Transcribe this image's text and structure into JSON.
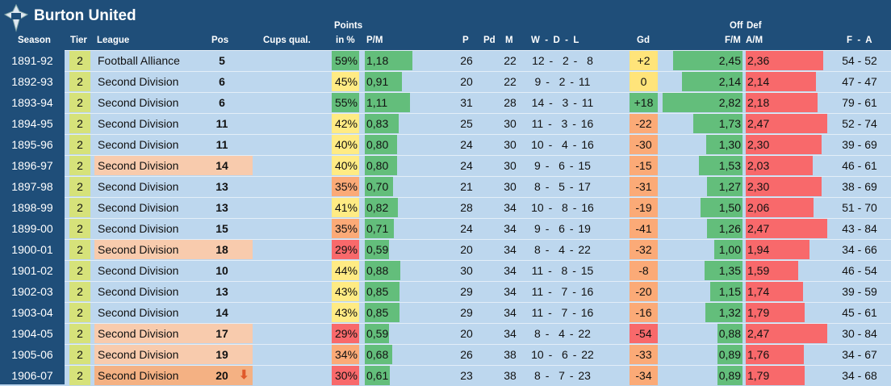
{
  "title": "Burton United",
  "headers": {
    "season": "Season",
    "tier": "Tier",
    "league": "League",
    "pos": "Pos",
    "cups": "Cups qual.",
    "points": "Points",
    "in_pct": "in %",
    "pm": "P/M",
    "p": "P",
    "pd": "Pd",
    "m": "M",
    "wdl": "W  -  D  -  L",
    "gd": "Gd",
    "off": "Off",
    "def": "Def",
    "fm": "F/M",
    "am": "A/M",
    "fa": "F  -  A"
  },
  "colors": {
    "header": "#1f4e79",
    "row": "#bdd7ee",
    "green": "#63be7b",
    "yellow": "#ffeb84",
    "orange": "#fbaa77",
    "red": "#f8696b",
    "league_warn": "#f8cbad",
    "league_releg": "#f4b183"
  },
  "rows": [
    {
      "season": "1891-92",
      "tier": "2",
      "league": "Football Alliance",
      "pos": "5",
      "pct": "59%",
      "pm": "1,18",
      "p": "26",
      "m": "22",
      "wdl": "12 -  2 -  8",
      "gd": "+2",
      "fm": "2,45",
      "am": "2,36",
      "fa": "54 - 52",
      "hl": ""
    },
    {
      "season": "1892-93",
      "tier": "2",
      "league": "Second Division",
      "pos": "6",
      "pct": "45%",
      "pm": "0,91",
      "p": "20",
      "m": "22",
      "wdl": "9 -  2 - 11",
      "gd": "0",
      "fm": "2,14",
      "am": "2,14",
      "fa": "47 - 47",
      "hl": ""
    },
    {
      "season": "1893-94",
      "tier": "2",
      "league": "Second Division",
      "pos": "6",
      "pct": "55%",
      "pm": "1,11",
      "p": "31",
      "m": "28",
      "wdl": "14 -  3 - 11",
      "gd": "+18",
      "fm": "2,82",
      "am": "2,18",
      "fa": "79 - 61",
      "hl": ""
    },
    {
      "season": "1894-95",
      "tier": "2",
      "league": "Second Division",
      "pos": "11",
      "pct": "42%",
      "pm": "0,83",
      "p": "25",
      "m": "30",
      "wdl": "11 -  3 - 16",
      "gd": "-22",
      "fm": "1,73",
      "am": "2,47",
      "fa": "52 - 74",
      "hl": ""
    },
    {
      "season": "1895-96",
      "tier": "2",
      "league": "Second Division",
      "pos": "11",
      "pct": "40%",
      "pm": "0,80",
      "p": "24",
      "m": "30",
      "wdl": "10 -  4 - 16",
      "gd": "-30",
      "fm": "1,30",
      "am": "2,30",
      "fa": "39 - 69",
      "hl": ""
    },
    {
      "season": "1896-97",
      "tier": "2",
      "league": "Second Division",
      "pos": "14",
      "pct": "40%",
      "pm": "0,80",
      "p": "24",
      "m": "30",
      "wdl": "9 -  6 - 15",
      "gd": "-15",
      "fm": "1,53",
      "am": "2,03",
      "fa": "46 - 61",
      "hl": "warn"
    },
    {
      "season": "1897-98",
      "tier": "2",
      "league": "Second Division",
      "pos": "13",
      "pct": "35%",
      "pm": "0,70",
      "p": "21",
      "m": "30",
      "wdl": "8 -  5 - 17",
      "gd": "-31",
      "fm": "1,27",
      "am": "2,30",
      "fa": "38 - 69",
      "hl": ""
    },
    {
      "season": "1898-99",
      "tier": "2",
      "league": "Second Division",
      "pos": "13",
      "pct": "41%",
      "pm": "0,82",
      "p": "28",
      "m": "34",
      "wdl": "10 -  8 - 16",
      "gd": "-19",
      "fm": "1,50",
      "am": "2,06",
      "fa": "51 - 70",
      "hl": ""
    },
    {
      "season": "1899-00",
      "tier": "2",
      "league": "Second Division",
      "pos": "15",
      "pct": "35%",
      "pm": "0,71",
      "p": "24",
      "m": "34",
      "wdl": "9 -  6 - 19",
      "gd": "-41",
      "fm": "1,26",
      "am": "2,47",
      "fa": "43 - 84",
      "hl": ""
    },
    {
      "season": "1900-01",
      "tier": "2",
      "league": "Second Division",
      "pos": "18",
      "pct": "29%",
      "pm": "0,59",
      "p": "20",
      "m": "34",
      "wdl": "8 -  4 - 22",
      "gd": "-32",
      "fm": "1,00",
      "am": "1,94",
      "fa": "34 - 66",
      "hl": "warn"
    },
    {
      "season": "1901-02",
      "tier": "2",
      "league": "Second Division",
      "pos": "10",
      "pct": "44%",
      "pm": "0,88",
      "p": "30",
      "m": "34",
      "wdl": "11 -  8 - 15",
      "gd": "-8",
      "fm": "1,35",
      "am": "1,59",
      "fa": "46 - 54",
      "hl": ""
    },
    {
      "season": "1902-03",
      "tier": "2",
      "league": "Second Division",
      "pos": "13",
      "pct": "43%",
      "pm": "0,85",
      "p": "29",
      "m": "34",
      "wdl": "11 -  7 - 16",
      "gd": "-20",
      "fm": "1,15",
      "am": "1,74",
      "fa": "39 - 59",
      "hl": ""
    },
    {
      "season": "1903-04",
      "tier": "2",
      "league": "Second Division",
      "pos": "14",
      "pct": "43%",
      "pm": "0,85",
      "p": "29",
      "m": "34",
      "wdl": "11 -  7 - 16",
      "gd": "-16",
      "fm": "1,32",
      "am": "1,79",
      "fa": "45 - 61",
      "hl": ""
    },
    {
      "season": "1904-05",
      "tier": "2",
      "league": "Second Division",
      "pos": "17",
      "pct": "29%",
      "pm": "0,59",
      "p": "20",
      "m": "34",
      "wdl": "8 -  4 - 22",
      "gd": "-54",
      "fm": "0,88",
      "am": "2,47",
      "fa": "30 - 84",
      "hl": "warn"
    },
    {
      "season": "1905-06",
      "tier": "2",
      "league": "Second Division",
      "pos": "19",
      "pct": "34%",
      "pm": "0,68",
      "p": "26",
      "m": "38",
      "wdl": "10 -  6 - 22",
      "gd": "-33",
      "fm": "0,89",
      "am": "1,76",
      "fa": "34 - 67",
      "hl": "warn"
    },
    {
      "season": "1906-07",
      "tier": "2",
      "league": "Second Division",
      "pos": "20",
      "pct": "30%",
      "pm": "0,61",
      "p": "23",
      "m": "38",
      "wdl": "8 -  7 - 23",
      "gd": "-34",
      "fm": "0,89",
      "am": "1,79",
      "fa": "34 - 68",
      "hl": "releg",
      "arrow": "down-arrow-icon"
    }
  ]
}
